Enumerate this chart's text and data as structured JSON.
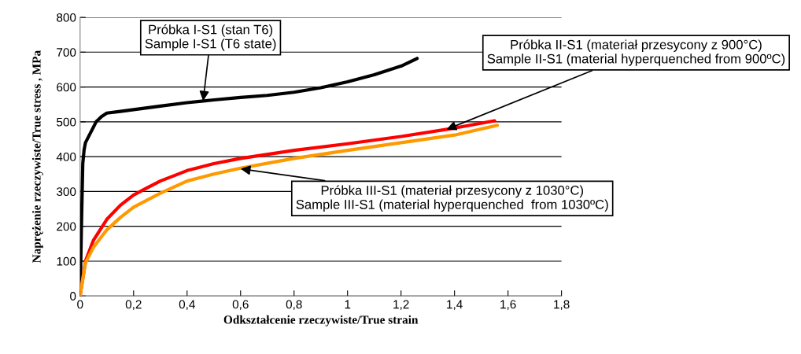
{
  "chart_data": {
    "type": "line",
    "xlabel": "Odkształcenie rzeczywiste/True strain",
    "ylabel": "Naprężenie rzeczywiste/True stress , MPa",
    "xlim": [
      0,
      1.8
    ],
    "ylim": [
      0,
      800
    ],
    "xticks": [
      0,
      {
        "value": 0.2,
        "label": "0,2"
      },
      {
        "value": 0.4,
        "label": "0,4"
      },
      {
        "value": 0.6,
        "label": "0,6"
      },
      {
        "value": 0.8,
        "label": "0,8"
      },
      1,
      {
        "value": 1.2,
        "label": "1,2"
      },
      {
        "value": 1.4,
        "label": "1,4"
      },
      {
        "value": 1.6,
        "label": "1,6"
      },
      {
        "value": 1.8,
        "label": "1,8"
      }
    ],
    "yticks": [
      0,
      100,
      200,
      300,
      400,
      500,
      600,
      700,
      800
    ],
    "grid": "y",
    "marker": "none",
    "line_style": "solid",
    "series": [
      {
        "color": "#000000",
        "x": [
          0,
          0.005,
          0.01,
          0.015,
          0.02,
          0.04,
          0.06,
          0.08,
          0.1,
          0.15,
          0.2,
          0.3,
          0.4,
          0.5,
          0.6,
          0.7,
          0.8,
          0.9,
          1.0,
          1.1,
          1.2,
          1.26
        ],
        "values": [
          0,
          200,
          380,
          420,
          440,
          470,
          500,
          515,
          525,
          530,
          535,
          545,
          555,
          563,
          570,
          576,
          585,
          598,
          615,
          635,
          660,
          682
        ]
      },
      {
        "color": "#ff0000",
        "x": [
          0,
          0.02,
          0.05,
          0.1,
          0.15,
          0.2,
          0.25,
          0.3,
          0.4,
          0.5,
          0.6,
          0.8,
          1.0,
          1.2,
          1.4,
          1.55
        ],
        "values": [
          0,
          100,
          160,
          220,
          260,
          290,
          310,
          330,
          360,
          380,
          395,
          418,
          437,
          458,
          482,
          503
        ]
      },
      {
        "color": "#ff9900",
        "x": [
          0,
          0.02,
          0.05,
          0.1,
          0.15,
          0.2,
          0.3,
          0.4,
          0.5,
          0.6,
          0.8,
          1.0,
          1.2,
          1.4,
          1.56
        ],
        "values": [
          0,
          95,
          140,
          190,
          225,
          255,
          295,
          330,
          350,
          367,
          395,
          418,
          440,
          462,
          490
        ]
      }
    ],
    "annotations": [
      {
        "text": "Próbka I-S1 (stan T6)\nSample I-S1 (T6 state)",
        "x": 0.46,
        "y": 560
      },
      {
        "text": "Próbka II-S1 (materiał przesycony z 900°C)\nSample II-S1 (material hyperquenched from 900ºC)",
        "x": 1.37,
        "y": 478
      },
      {
        "text": "Próbka III-S1 (materiał przesycony z 1030°C)\nSample III-S1 (material hyperquenched  from 1030ºC)",
        "x": 0.6,
        "y": 365
      }
    ]
  }
}
